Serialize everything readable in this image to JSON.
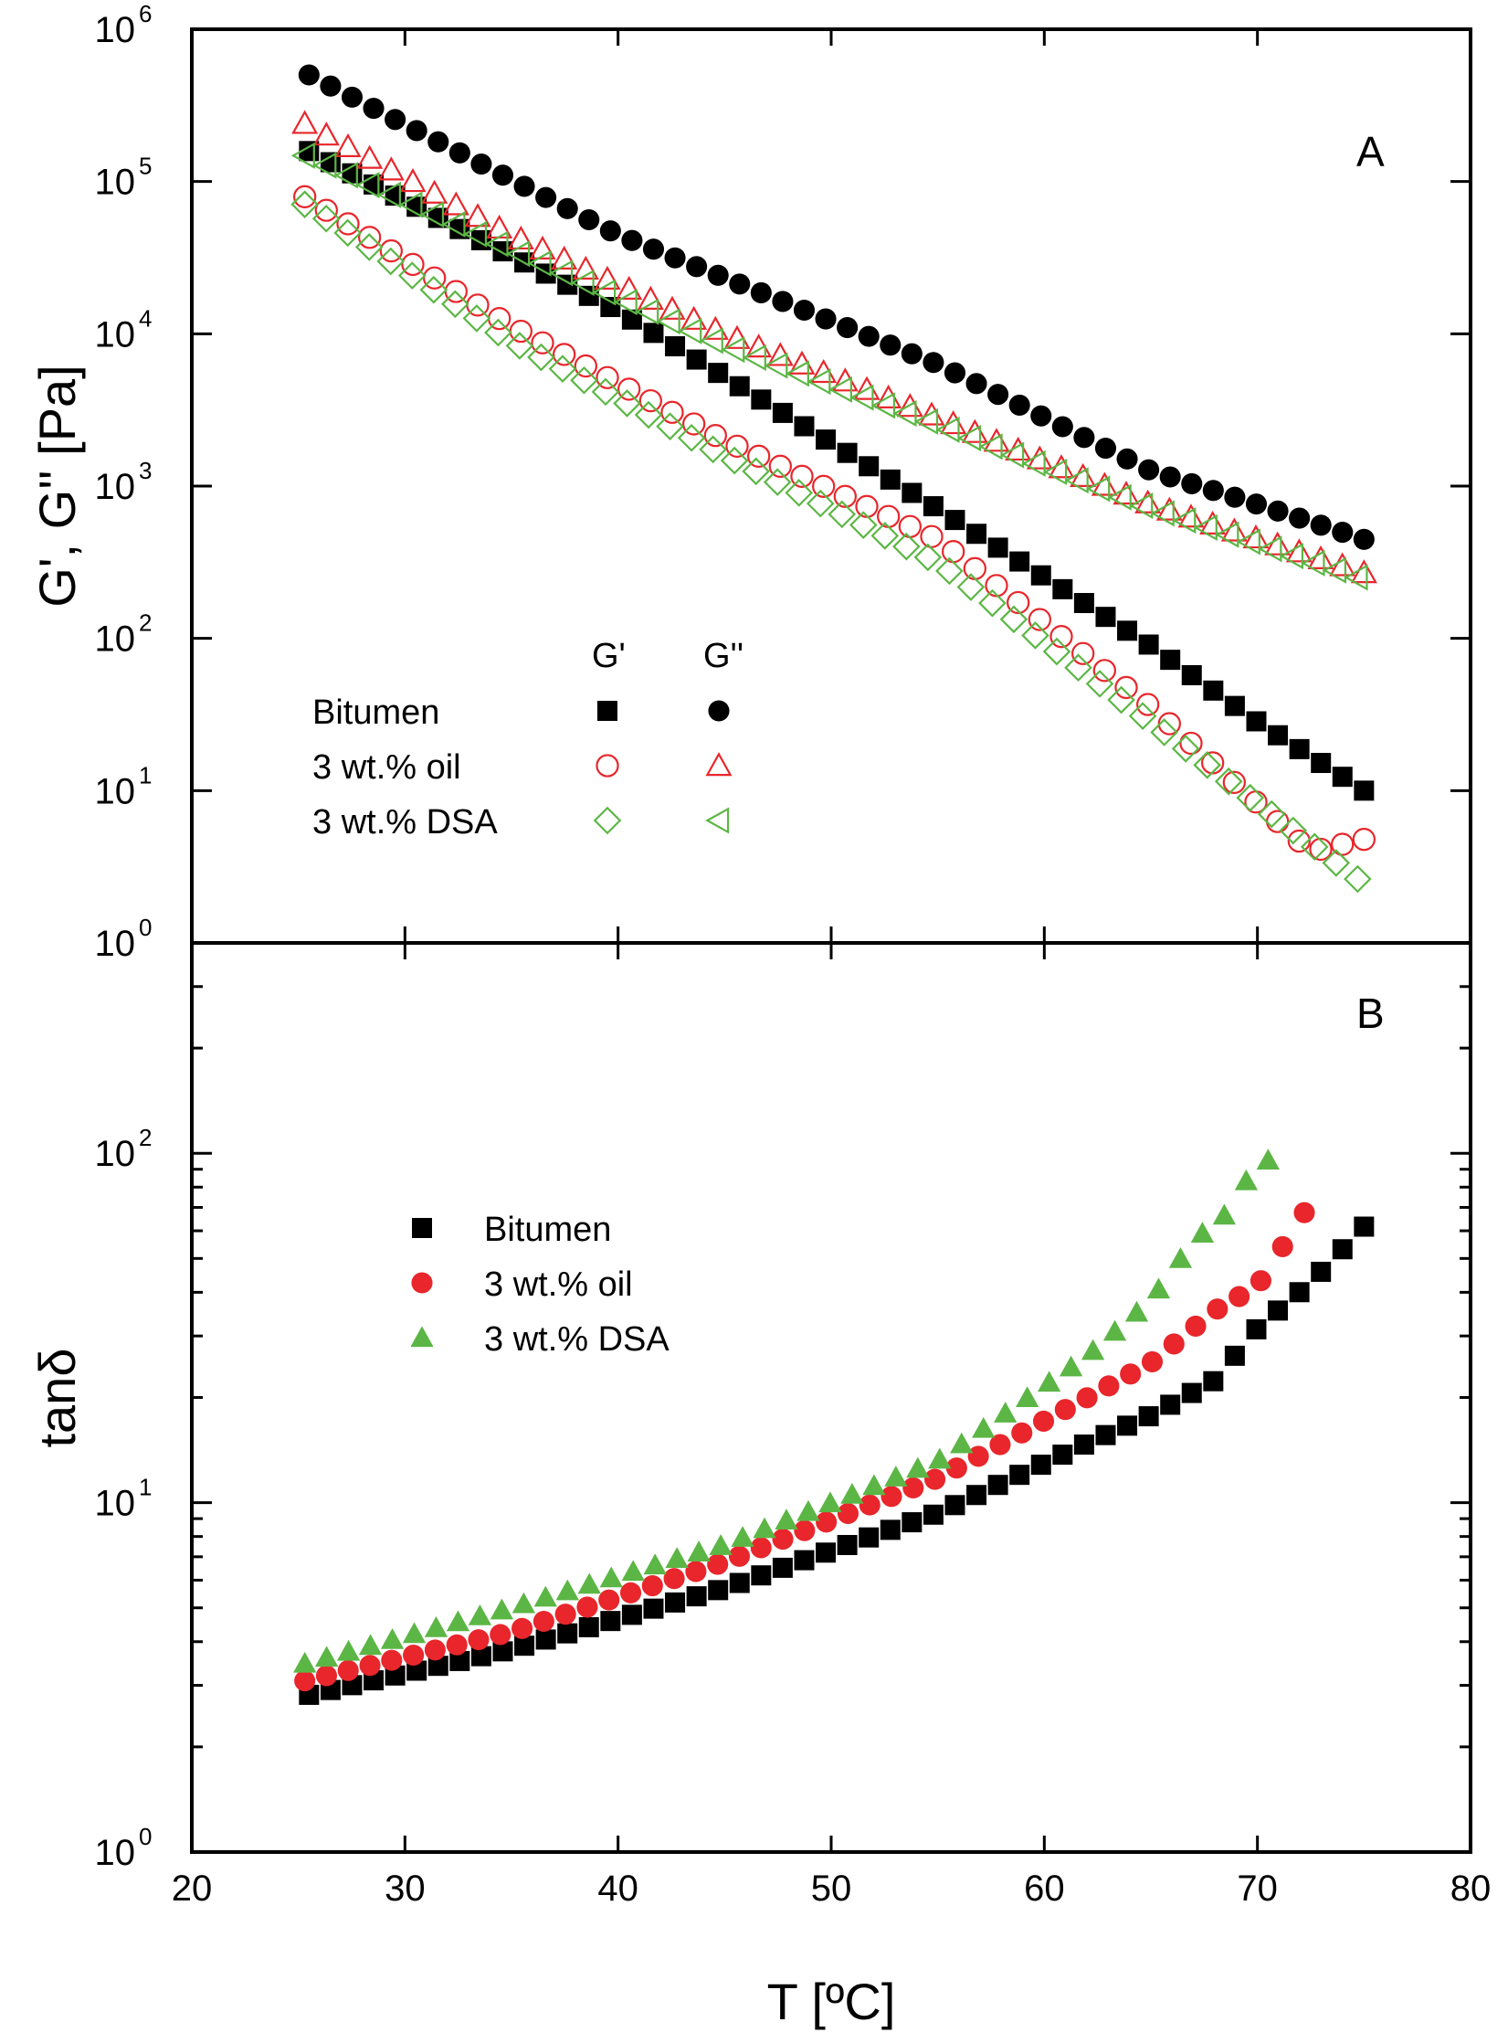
{
  "chart_data": [
    {
      "panel": "A",
      "type": "scatter",
      "title": "",
      "panel_label": "A",
      "xlabel": "T  [ºC]",
      "ylabel": "G', G''  [Pa]",
      "xlim": [
        20,
        80
      ],
      "ylim": [
        1,
        1000000
      ],
      "yscale": "log",
      "x_ticks": [
        20,
        30,
        40,
        50,
        60,
        70,
        80
      ],
      "y_tick_labels": [
        {
          "base": "10",
          "exp": "0"
        },
        {
          "base": "10",
          "exp": "1"
        },
        {
          "base": "10",
          "exp": "2"
        },
        {
          "base": "10",
          "exp": "3"
        },
        {
          "base": "10",
          "exp": "4"
        },
        {
          "base": "10",
          "exp": "5"
        },
        {
          "base": "10",
          "exp": "6"
        }
      ],
      "legend": {
        "position": "lower-left",
        "column_headers": [
          "G'",
          "G''"
        ],
        "rows": [
          "Bitumen",
          "3 wt.% oil",
          "3 wt.% DSA"
        ]
      },
      "series": [
        {
          "name": "Bitumen G'",
          "marker": "square",
          "filled": true,
          "color": "#000000",
          "x_start": 25.5,
          "x_end": 75,
          "n": 50,
          "log_pts": [
            [
              25.5,
              5.2
            ],
            [
              40,
              4.15
            ],
            [
              55,
              2.85
            ],
            [
              65,
              1.95
            ],
            [
              70,
              1.45
            ],
            [
              75,
              1.0
            ]
          ]
        },
        {
          "name": "Bitumen G''",
          "marker": "circle",
          "filled": true,
          "color": "#000000",
          "x_start": 25.5,
          "x_end": 75,
          "n": 50,
          "log_pts": [
            [
              25.5,
              5.7
            ],
            [
              40,
              4.65
            ],
            [
              55,
              3.8
            ],
            [
              65,
              3.1
            ],
            [
              70,
              2.88
            ],
            [
              75,
              2.65
            ]
          ]
        },
        {
          "name": "3 wt.% oil G'",
          "marker": "circle",
          "filled": false,
          "color": "#e8262b",
          "x_start": 25.3,
          "x_end": 75,
          "n": 50,
          "log_pts": [
            [
              25.3,
              4.9
            ],
            [
              35,
              4.05
            ],
            [
              45,
              3.3
            ],
            [
              55,
              2.65
            ],
            [
              65,
              1.55
            ],
            [
              72.5,
              0.6
            ],
            [
              75,
              0.68
            ]
          ]
        },
        {
          "name": "3 wt.% oil G''",
          "marker": "triangle-up",
          "filled": false,
          "color": "#e8262b",
          "x_start": 25.3,
          "x_end": 75,
          "n": 50,
          "log_pts": [
            [
              25.3,
              5.38
            ],
            [
              35,
              4.65
            ],
            [
              45,
              4.0
            ],
            [
              55,
              3.45
            ],
            [
              65,
              2.88
            ],
            [
              75,
              2.43
            ]
          ]
        },
        {
          "name": "3 wt.% DSA G'",
          "marker": "diamond",
          "filled": false,
          "color": "#5cb645",
          "x_start": 25.3,
          "x_end": 74.7,
          "n": 50,
          "log_pts": [
            [
              25.3,
              4.85
            ],
            [
              35,
              3.95
            ],
            [
              45,
              3.2
            ],
            [
              55,
              2.5
            ],
            [
              65,
              1.45
            ],
            [
              72.5,
              0.65
            ],
            [
              74.7,
              0.42
            ]
          ]
        },
        {
          "name": "3 wt.% DSA G''",
          "marker": "triangle-left",
          "filled": false,
          "color": "#5cb645",
          "x_start": 25.3,
          "x_end": 74.7,
          "n": 50,
          "log_pts": [
            [
              25.3,
              5.17
            ],
            [
              35,
              4.55
            ],
            [
              45,
              3.92
            ],
            [
              55,
              3.4
            ],
            [
              65,
              2.85
            ],
            [
              74.7,
              2.4
            ]
          ]
        }
      ]
    },
    {
      "panel": "B",
      "type": "scatter",
      "title": "",
      "panel_label": "B",
      "xlabel": "T  [ºC]",
      "ylabel": "tanδ",
      "xlim": [
        20,
        80
      ],
      "ylim": [
        1,
        400
      ],
      "yscale": "log",
      "x_ticks": [
        20,
        30,
        40,
        50,
        60,
        70,
        80
      ],
      "x_tick_labels": [
        "20",
        "30",
        "40",
        "50",
        "60",
        "70",
        "80"
      ],
      "y_tick_labels": [
        {
          "base": "10",
          "exp": "0"
        },
        {
          "base": "10",
          "exp": "1"
        },
        {
          "base": "10",
          "exp": "2"
        }
      ],
      "legend": {
        "position": "upper-left",
        "rows": [
          "Bitumen",
          "3 wt.% oil",
          "3 wt.% DSA"
        ]
      },
      "series": [
        {
          "name": "Bitumen",
          "marker": "square",
          "filled": true,
          "color": "#000000",
          "x_start": 25.5,
          "x_end": 75,
          "n": 50,
          "log_pts": [
            [
              25.5,
              0.45
            ],
            [
              35,
              0.58
            ],
            [
              45,
              0.755
            ],
            [
              55,
              0.97
            ],
            [
              62,
              1.17
            ],
            [
              65,
              1.25
            ],
            [
              68,
              1.35
            ],
            [
              70,
              1.5
            ],
            [
              72.5,
              1.63
            ],
            [
              75,
              1.79
            ]
          ]
        },
        {
          "name": "3 wt.% oil",
          "marker": "circle",
          "filled": true,
          "color": "#e8262b",
          "x_start": 25.3,
          "x_end": 72.2,
          "n": 47,
          "log_pts": [
            [
              25.3,
              0.49
            ],
            [
              35,
              0.63
            ],
            [
              45,
              0.83
            ],
            [
              55,
              1.07
            ],
            [
              62,
              1.3
            ],
            [
              65,
              1.4
            ],
            [
              68,
              1.55
            ],
            [
              70,
              1.62
            ],
            [
              72.2,
              1.83
            ]
          ]
        },
        {
          "name": "3 wt.% DSA",
          "marker": "triangle-up",
          "filled": true,
          "color": "#5cb645",
          "x_start": 25.3,
          "x_end": 70.5,
          "n": 45,
          "log_pts": [
            [
              25.3,
              0.54
            ],
            [
              35,
              0.7
            ],
            [
              45,
              0.88
            ],
            [
              55,
              1.12
            ],
            [
              62,
              1.42
            ],
            [
              65,
              1.58
            ],
            [
              67,
              1.75
            ],
            [
              69,
              1.85
            ],
            [
              70,
              2.0
            ],
            [
              70.5,
              1.98
            ]
          ]
        }
      ]
    }
  ]
}
